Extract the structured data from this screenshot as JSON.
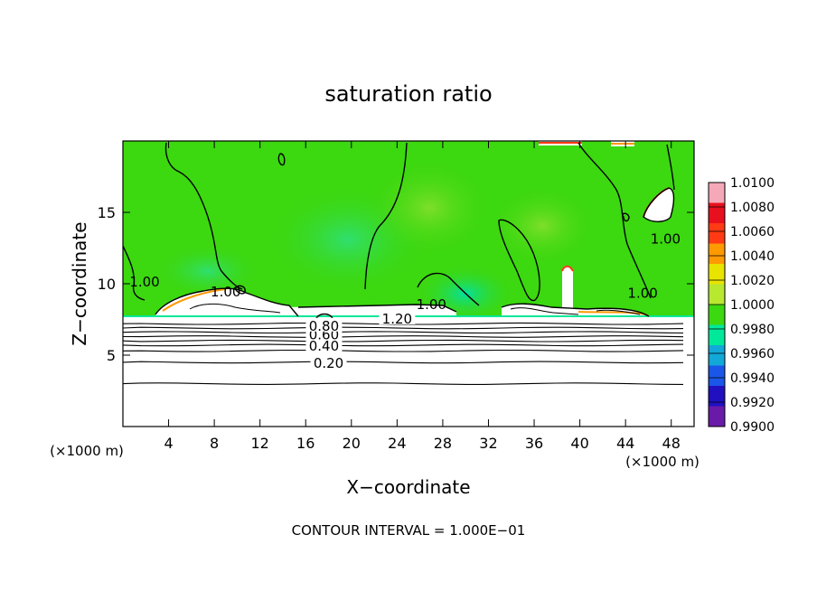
{
  "chart_data": {
    "type": "heatmap",
    "title": "saturation ratio",
    "xlabel": "X−coordinate",
    "ylabel": "Z−coordinate",
    "x_unit_left": "(×1000 m)",
    "x_unit_right": "(×1000 m)",
    "xlim": [
      0,
      50
    ],
    "ylim": [
      0,
      20
    ],
    "x_ticks": [
      "4",
      "8",
      "12",
      "16",
      "20",
      "24",
      "28",
      "32",
      "36",
      "40",
      "44",
      "48"
    ],
    "y_ticks": [
      "5",
      "10",
      "15"
    ],
    "footer": "CONTOUR INTERVAL = 1.000E−01",
    "colorbar": {
      "labels": [
        "1.0100",
        "1.0080",
        "1.0060",
        "1.0040",
        "1.0020",
        "1.0000",
        "0.9980",
        "0.9960",
        "0.9940",
        "0.9920",
        "0.9900"
      ],
      "colors": [
        "#f4a8b8",
        "#e8101e",
        "#ff3a14",
        "#ff9a00",
        "#e8e400",
        "#b8e830",
        "#3cd810",
        "#00e89a",
        "#12a8d8",
        "#1a56e8",
        "#2010c0",
        "#6a1aa8"
      ],
      "range": [
        0.99,
        1.01
      ]
    },
    "contour_labels": [
      {
        "text": "0.20",
        "x": 18.0,
        "y": 4.5
      },
      {
        "text": "0.40",
        "x": 17.6,
        "y": 5.7
      },
      {
        "text": "0.60",
        "x": 17.6,
        "y": 6.5
      },
      {
        "text": "0.80",
        "x": 17.6,
        "y": 7.1
      },
      {
        "text": "1.20",
        "x": 24.0,
        "y": 7.6
      },
      {
        "text": "1.00",
        "x": 1.9,
        "y": 10.2
      },
      {
        "text": "1.00",
        "x": 9.0,
        "y": 9.5
      },
      {
        "text": "1.00",
        "x": 27.0,
        "y": 8.6
      },
      {
        "text": "1.00",
        "x": 45.5,
        "y": 9.4
      },
      {
        "text": "1.00",
        "x": 47.5,
        "y": 13.2
      }
    ],
    "stable_contour_heights": [
      3.0,
      4.5,
      5.3,
      5.7,
      6.0,
      6.3,
      6.6,
      6.9,
      7.2
    ]
  }
}
